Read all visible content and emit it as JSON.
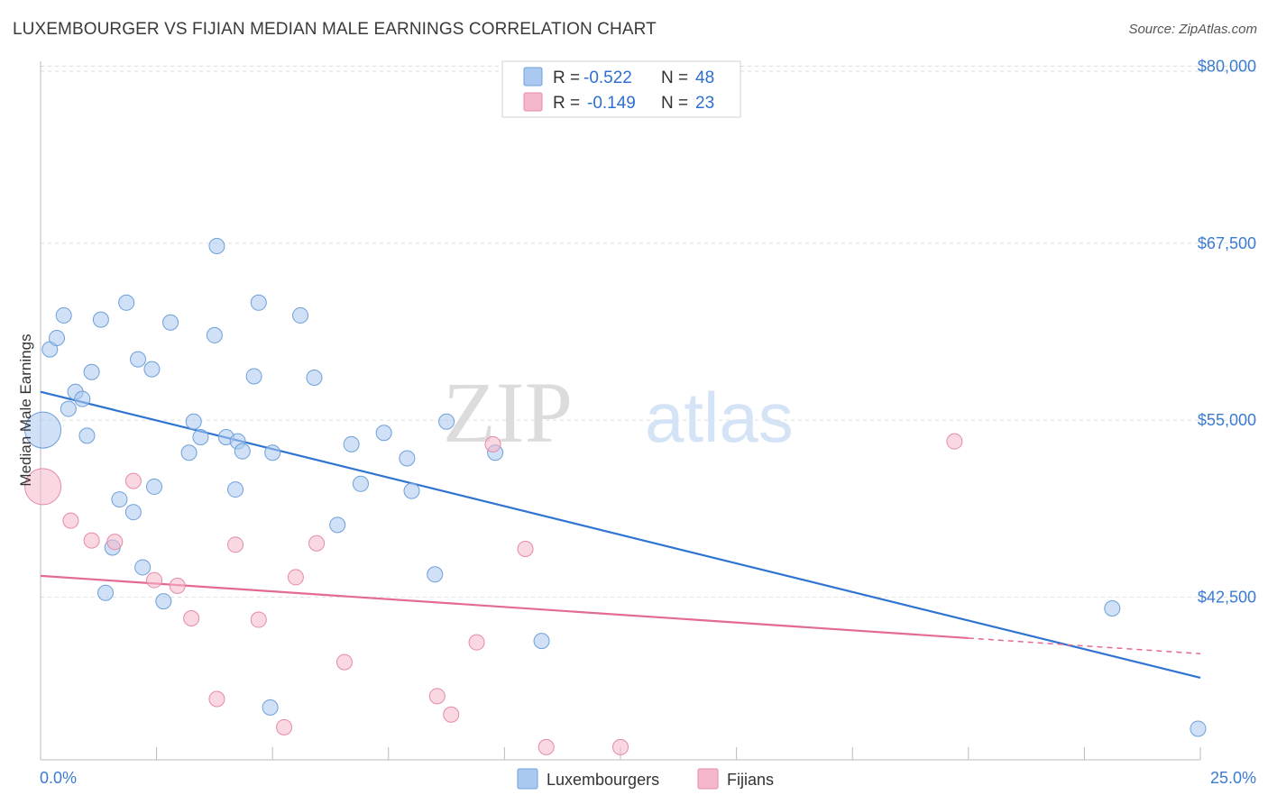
{
  "header": {
    "title": "LUXEMBOURGER VS FIJIAN MEDIAN MALE EARNINGS CORRELATION CHART",
    "source": "Source: ZipAtlas.com"
  },
  "watermark": {
    "zip": "ZIP",
    "atlas": "atlas"
  },
  "legend": {
    "rows": [
      {
        "r_label": "R =",
        "r_value": "-0.522",
        "n_label": "N =",
        "n_value": "48",
        "color": "#aac9f0"
      },
      {
        "r_label": "R =",
        "r_value": "-0.149",
        "n_label": "N =",
        "n_value": "23",
        "color": "#f5b8cb"
      }
    ]
  },
  "bottom_legend": {
    "series1": "Luxembourgers",
    "series2": "Fijians"
  },
  "chart_data": {
    "type": "scatter",
    "title": "LUXEMBOURGER VS FIJIAN MEDIAN MALE EARNINGS CORRELATION CHART",
    "xlabel": "",
    "ylabel": "Median Male Earnings",
    "xlim": [
      0,
      25
    ],
    "ylim": [
      31000,
      81500
    ],
    "x_tick_labels": [
      "0.0%",
      "25.0%"
    ],
    "y_ticks": [
      42500,
      55000,
      67500,
      80000
    ],
    "y_tick_labels": [
      "$42,500",
      "$55,000",
      "$67,500",
      "$80,000"
    ],
    "grid": true,
    "legend_position": "top-center",
    "series": [
      {
        "name": "Luxembourgers",
        "color": "#aac9f0",
        "stroke": "#6d9fd9",
        "trend_color": "#2f74d0",
        "trend": {
          "x0": 0,
          "y0": 57000,
          "x1": 25,
          "y1": 36800
        },
        "points": [
          {
            "x": 0.05,
            "y": 54300,
            "big": true
          },
          {
            "x": 0.2,
            "y": 60000
          },
          {
            "x": 0.35,
            "y": 60800
          },
          {
            "x": 0.5,
            "y": 62400
          },
          {
            "x": 0.6,
            "y": 55800
          },
          {
            "x": 0.75,
            "y": 57000
          },
          {
            "x": 0.9,
            "y": 56500
          },
          {
            "x": 1.0,
            "y": 53900
          },
          {
            "x": 1.1,
            "y": 58400
          },
          {
            "x": 1.3,
            "y": 62100
          },
          {
            "x": 1.4,
            "y": 42800
          },
          {
            "x": 1.55,
            "y": 46000
          },
          {
            "x": 1.7,
            "y": 49400
          },
          {
            "x": 1.85,
            "y": 63300
          },
          {
            "x": 2.0,
            "y": 48500
          },
          {
            "x": 2.1,
            "y": 59300
          },
          {
            "x": 2.2,
            "y": 44600
          },
          {
            "x": 2.4,
            "y": 58600
          },
          {
            "x": 2.45,
            "y": 50300
          },
          {
            "x": 2.65,
            "y": 42200
          },
          {
            "x": 2.8,
            "y": 61900
          },
          {
            "x": 3.2,
            "y": 52700
          },
          {
            "x": 3.3,
            "y": 54900
          },
          {
            "x": 3.45,
            "y": 53800
          },
          {
            "x": 3.75,
            "y": 61000
          },
          {
            "x": 3.8,
            "y": 67300
          },
          {
            "x": 4.0,
            "y": 53800
          },
          {
            "x": 4.2,
            "y": 50100
          },
          {
            "x": 4.25,
            "y": 53500
          },
          {
            "x": 4.35,
            "y": 52800
          },
          {
            "x": 4.6,
            "y": 58100
          },
          {
            "x": 4.7,
            "y": 63300
          },
          {
            "x": 4.95,
            "y": 34700
          },
          {
            "x": 5.0,
            "y": 52700
          },
          {
            "x": 5.6,
            "y": 62400
          },
          {
            "x": 5.9,
            "y": 58000
          },
          {
            "x": 6.4,
            "y": 47600
          },
          {
            "x": 6.7,
            "y": 53300
          },
          {
            "x": 6.9,
            "y": 50500
          },
          {
            "x": 7.4,
            "y": 54100
          },
          {
            "x": 7.9,
            "y": 52300
          },
          {
            "x": 8.0,
            "y": 50000
          },
          {
            "x": 8.5,
            "y": 44100
          },
          {
            "x": 8.75,
            "y": 54900
          },
          {
            "x": 9.8,
            "y": 52700
          },
          {
            "x": 10.8,
            "y": 39400
          },
          {
            "x": 23.1,
            "y": 41700
          },
          {
            "x": 24.95,
            "y": 33200
          }
        ]
      },
      {
        "name": "Fijians",
        "color": "#f5b8cb",
        "stroke": "#e58aa8",
        "trend_color": "#e26a93",
        "trend": {
          "x0": 0,
          "y0": 44000,
          "x1": 20,
          "y1": 39600,
          "dash_to_x": 25,
          "dash_to_y": 38500
        },
        "points": [
          {
            "x": 0.05,
            "y": 50300,
            "big": true
          },
          {
            "x": 0.65,
            "y": 47900
          },
          {
            "x": 1.1,
            "y": 46500
          },
          {
            "x": 1.6,
            "y": 46400
          },
          {
            "x": 2.0,
            "y": 50700
          },
          {
            "x": 2.45,
            "y": 43700
          },
          {
            "x": 2.95,
            "y": 43300
          },
          {
            "x": 3.25,
            "y": 41000
          },
          {
            "x": 3.8,
            "y": 35300
          },
          {
            "x": 4.2,
            "y": 46200
          },
          {
            "x": 4.7,
            "y": 40900
          },
          {
            "x": 5.25,
            "y": 33300
          },
          {
            "x": 5.5,
            "y": 43900
          },
          {
            "x": 5.95,
            "y": 46300
          },
          {
            "x": 6.55,
            "y": 37900
          },
          {
            "x": 8.55,
            "y": 35500
          },
          {
            "x": 8.85,
            "y": 34200
          },
          {
            "x": 9.4,
            "y": 39300
          },
          {
            "x": 9.75,
            "y": 53300
          },
          {
            "x": 10.45,
            "y": 45900
          },
          {
            "x": 10.9,
            "y": 31900
          },
          {
            "x": 12.5,
            "y": 31900
          },
          {
            "x": 19.7,
            "y": 53500
          }
        ]
      }
    ]
  }
}
